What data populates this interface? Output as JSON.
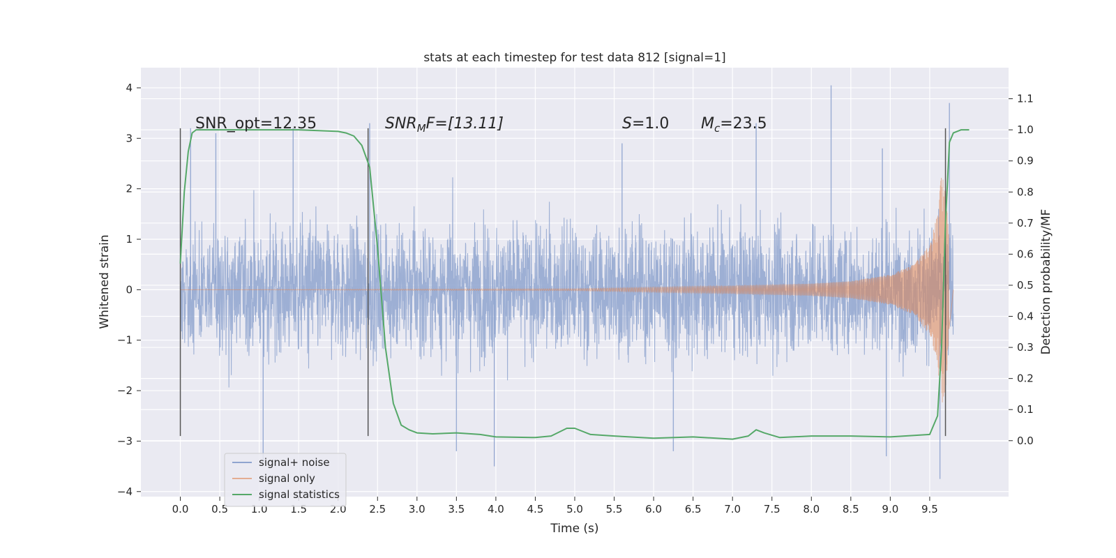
{
  "chart_data": {
    "type": "line",
    "title": "stats at each timestep for test data 812 [signal=1]",
    "xlabel": "Time (s)",
    "ylabel": "Whitened strain",
    "ylabel_right": "Detection probability/MF",
    "xlim": [
      -0.5,
      10.5
    ],
    "ylim": [
      -4.1,
      4.4
    ],
    "ylim_right": [
      -0.18,
      1.2
    ],
    "x_ticks": [
      "0.0",
      "0.5",
      "1.0",
      "1.5",
      "2.0",
      "2.5",
      "3.0",
      "3.5",
      "4.0",
      "4.5",
      "5.0",
      "5.5",
      "6.0",
      "6.5",
      "7.0",
      "7.5",
      "8.0",
      "8.5",
      "9.0",
      "9.5"
    ],
    "y_ticks": [
      "4",
      "3",
      "2",
      "1",
      "0",
      "−1",
      "−2",
      "−3",
      "−4"
    ],
    "y_right_ticks": [
      "1.1",
      "1.0",
      "0.9",
      "0.8",
      "0.7",
      "0.6",
      "0.5",
      "0.4",
      "0.3",
      "0.2",
      "0.1",
      "0.0"
    ],
    "grid": true,
    "legend_position": "lower-left",
    "annotations": {
      "snr_opt": "SNR_opt=12.35",
      "snr_mf_sym": "SNR",
      "snr_mf_sub": "M",
      "snr_mf_rest": "F=[13.11]",
      "s_sym": "S",
      "s_rest": "=1.0",
      "mc_sym": "M",
      "mc_sub": "c",
      "mc_rest": "=23.5"
    },
    "vertical_markers": [
      {
        "x": 0.0,
        "y_range": [
          -2.9,
          3.2
        ]
      },
      {
        "x": 2.38,
        "y_range": [
          -2.9,
          3.2
        ]
      },
      {
        "x": 9.7,
        "y_range": [
          -2.9,
          3.2
        ]
      }
    ],
    "series": [
      {
        "name": "signal+ noise",
        "color": "#8fa4cf",
        "description": "noise trace, time 0.0–9.8 s",
        "x_range": [
          0.0,
          9.8
        ],
        "envelope_upper": 1.6,
        "envelope_lower": -1.7,
        "extremes": [
          {
            "x": 0.13,
            "y": 3.2
          },
          {
            "x": 0.45,
            "y": 3.1
          },
          {
            "x": 1.43,
            "y": 3.2
          },
          {
            "x": 2.4,
            "y": 3.3
          },
          {
            "x": 5.6,
            "y": 2.9
          },
          {
            "x": 7.3,
            "y": 3.3
          },
          {
            "x": 8.25,
            "y": 4.05
          },
          {
            "x": 8.9,
            "y": 2.8
          },
          {
            "x": 9.75,
            "y": 3.7
          },
          {
            "x": 1.05,
            "y": -3.4
          },
          {
            "x": 3.5,
            "y": -3.2
          },
          {
            "x": 3.98,
            "y": -3.5
          },
          {
            "x": 6.25,
            "y": -3.2
          },
          {
            "x": 8.95,
            "y": -3.3
          },
          {
            "x": 9.63,
            "y": -3.75
          }
        ]
      },
      {
        "name": "signal only",
        "color": "#dd8452",
        "description": "chirp signal",
        "x": [
          0.0,
          5.0,
          6.0,
          7.0,
          8.0,
          8.5,
          9.0,
          9.3,
          9.5,
          9.6,
          9.65,
          9.7,
          9.8
        ],
        "amplitude": [
          0.0,
          0.02,
          0.05,
          0.08,
          0.12,
          0.17,
          0.3,
          0.5,
          0.9,
          1.5,
          2.3,
          2.0,
          0.0
        ]
      },
      {
        "name": "signal statistics",
        "color": "#55a868",
        "axis": "right",
        "x": [
          0.0,
          0.05,
          0.1,
          0.15,
          0.2,
          0.5,
          1.0,
          1.5,
          2.0,
          2.1,
          2.2,
          2.3,
          2.4,
          2.5,
          2.6,
          2.7,
          2.8,
          2.9,
          3.0,
          3.2,
          3.5,
          3.8,
          4.0,
          4.5,
          4.7,
          4.9,
          5.0,
          5.2,
          5.5,
          6.0,
          6.5,
          7.0,
          7.2,
          7.3,
          7.4,
          7.6,
          8.0,
          8.5,
          9.0,
          9.5,
          9.6,
          9.65,
          9.7,
          9.75,
          9.8,
          9.9,
          10.0
        ],
        "y": [
          0.57,
          0.8,
          0.93,
          0.99,
          1.0,
          1.0,
          1.0,
          1.0,
          0.995,
          0.99,
          0.98,
          0.95,
          0.88,
          0.62,
          0.3,
          0.12,
          0.05,
          0.035,
          0.025,
          0.022,
          0.025,
          0.02,
          0.012,
          0.01,
          0.015,
          0.04,
          0.04,
          0.02,
          0.015,
          0.008,
          0.012,
          0.005,
          0.015,
          0.035,
          0.025,
          0.01,
          0.015,
          0.015,
          0.012,
          0.02,
          0.08,
          0.3,
          0.7,
          0.96,
          0.99,
          1.0,
          1.0
        ]
      }
    ]
  }
}
